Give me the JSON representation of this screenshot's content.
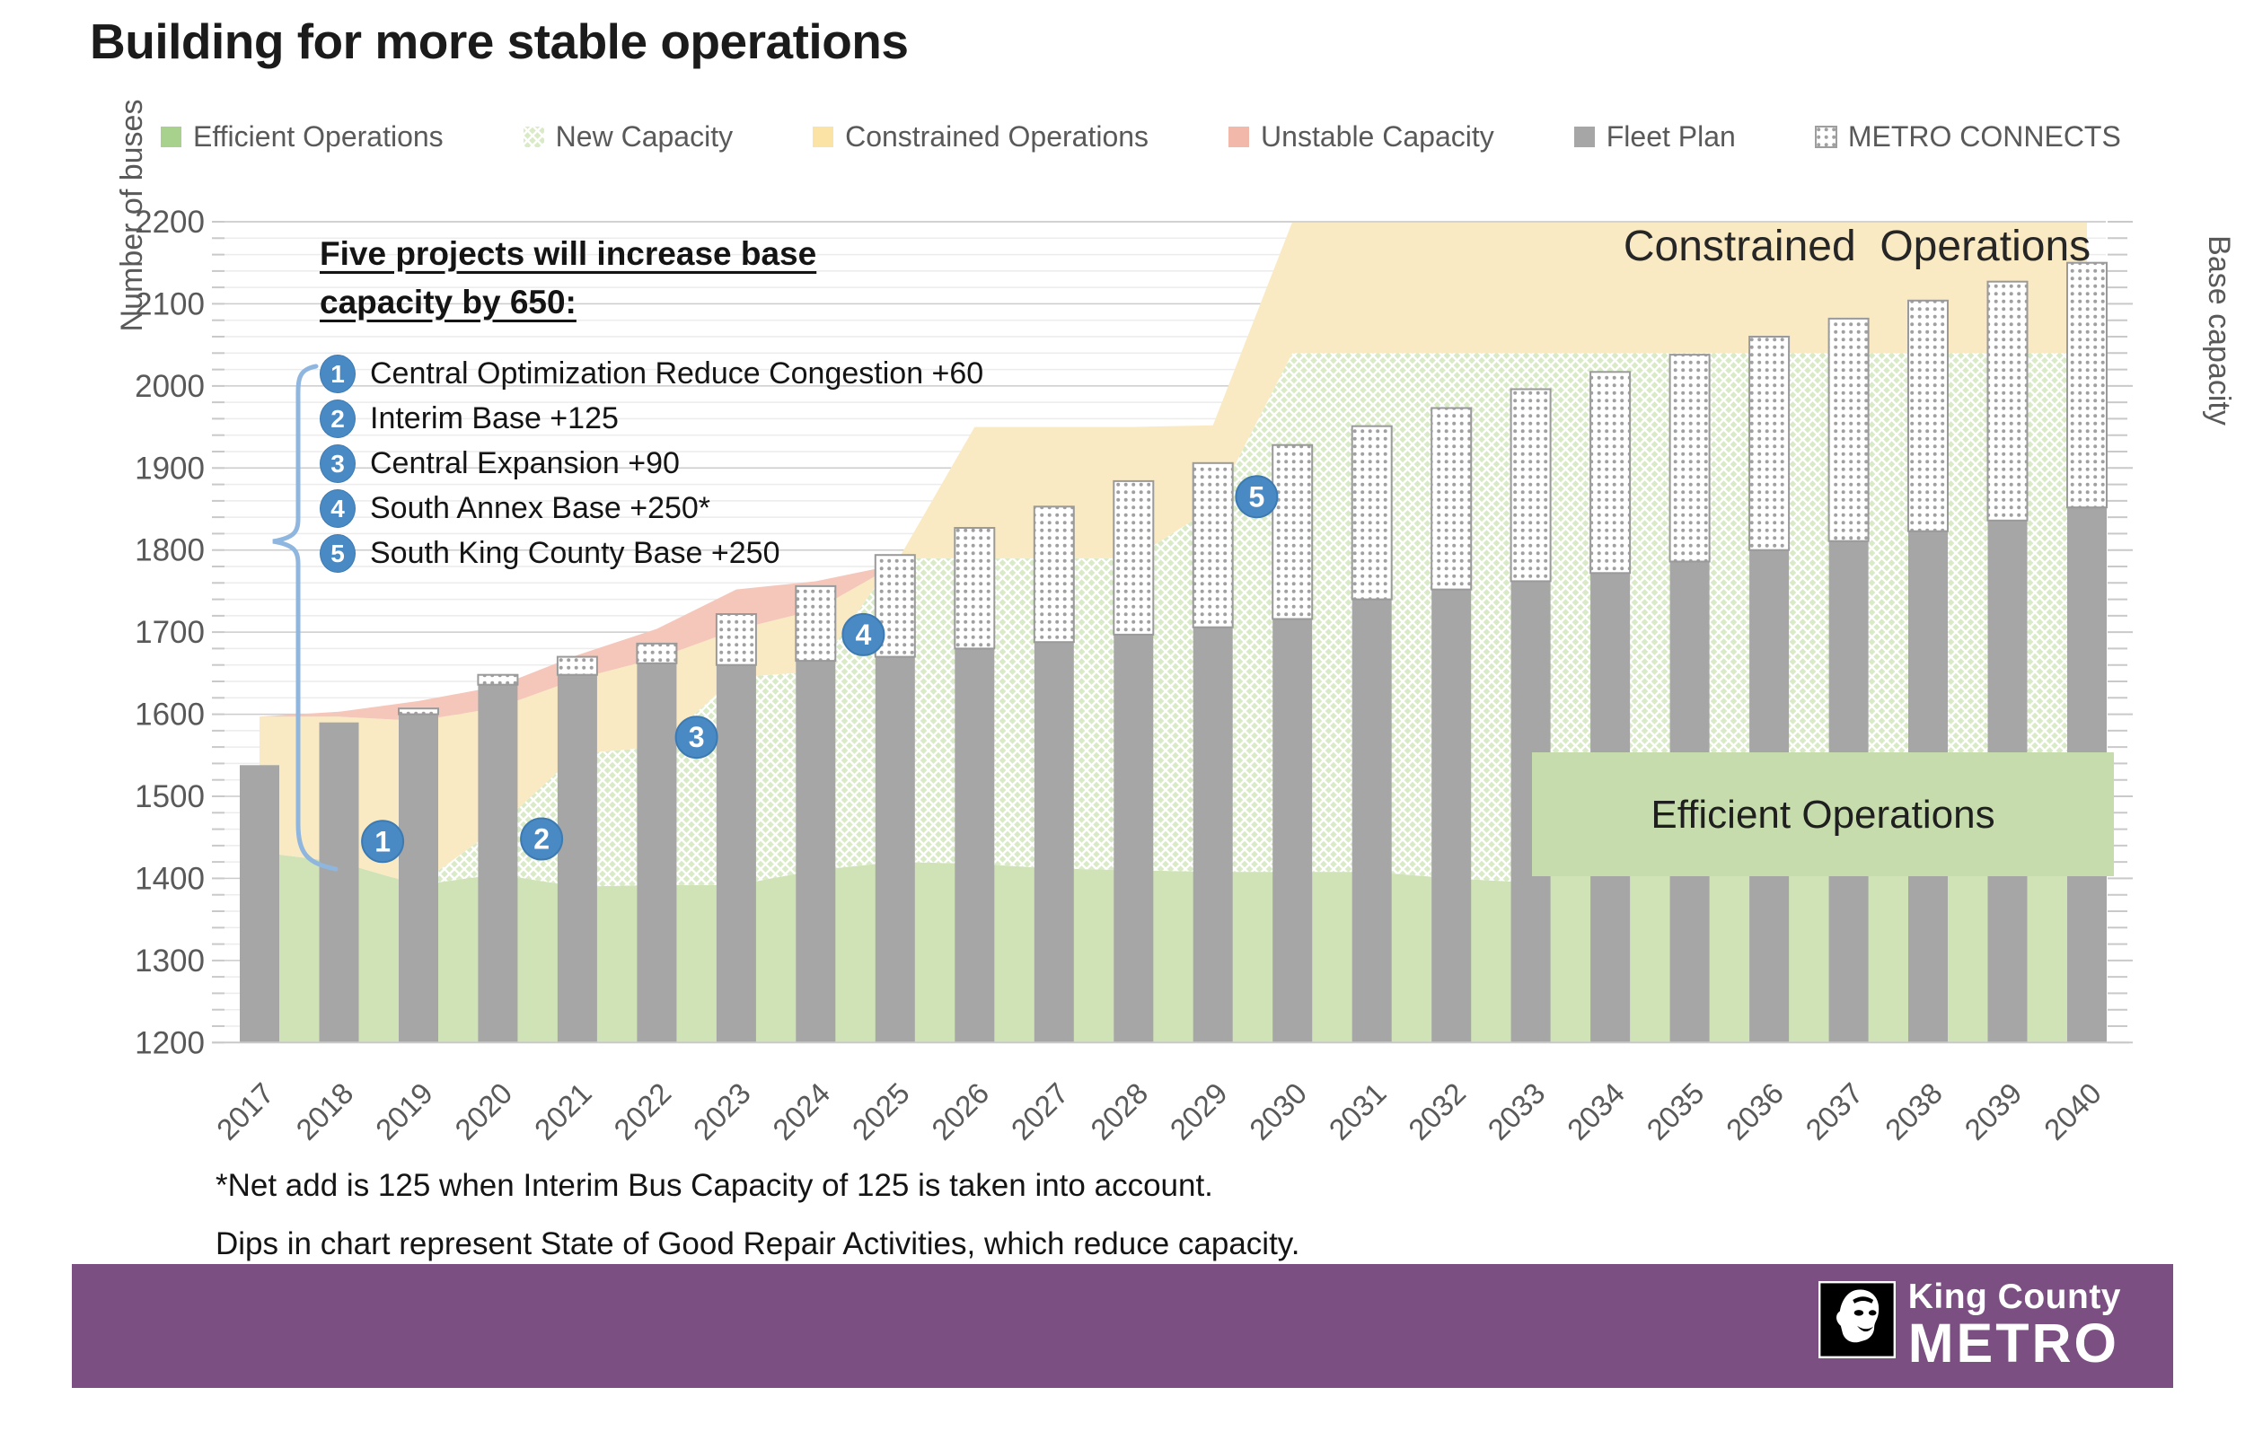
{
  "title": "Building for more stable operations",
  "legend": [
    {
      "label": "Efficient Operations",
      "swatch": "solid",
      "color": "#a9d18e"
    },
    {
      "label": "New Capacity",
      "swatch": "crosshatch",
      "color": "#c7dfae"
    },
    {
      "label": "Constrained Operations",
      "swatch": "solid",
      "color": "#fbe3a6"
    },
    {
      "label": "Unstable Capacity",
      "swatch": "solid",
      "color": "#f2b9aa"
    },
    {
      "label": "Fleet Plan",
      "swatch": "solid",
      "color": "#a6a6a6"
    },
    {
      "label": "METRO CONNECTS",
      "swatch": "dots",
      "color": "#ffffff"
    }
  ],
  "chart_data": {
    "type": "combo-stacked-area-bar",
    "title": "Building for more stable operations",
    "ylabel_left": "Number of buses",
    "ylabel_right": "Base capacity",
    "ylim": [
      1200,
      2200
    ],
    "ytick_step": 100,
    "yminor_step": 20,
    "ytick_labels": [
      1200,
      1300,
      1400,
      1500,
      1600,
      1700,
      1800,
      1900,
      2000,
      2100,
      2200
    ],
    "grid": true,
    "legend_position": "top",
    "years": [
      2017,
      2018,
      2019,
      2020,
      2021,
      2022,
      2023,
      2024,
      2025,
      2026,
      2027,
      2028,
      2029,
      2030,
      2031,
      2032,
      2033,
      2034,
      2035,
      2036,
      2037,
      2038,
      2039,
      2040
    ],
    "areas": {
      "efficient_top": [
        1432,
        1420,
        1392,
        1405,
        1390,
        1392,
        1392,
        1410,
        1420,
        1418,
        1412,
        1410,
        1408,
        1408,
        1408,
        1400,
        1395,
        1425,
        1412,
        1408,
        1408,
        1408,
        1408,
        1408
      ],
      "new_capacity_top": [
        1432,
        1420,
        1392,
        1462,
        1552,
        1560,
        1645,
        1652,
        1790,
        1790,
        1790,
        1790,
        1852,
        2040,
        2040,
        2040,
        2040,
        2040,
        2040,
        2040,
        2040,
        2040,
        2040,
        2040
      ],
      "constrained_top": [
        1597,
        1597,
        1592,
        1608,
        1643,
        1668,
        1703,
        1727,
        1782,
        1950,
        1950,
        1950,
        1952,
        2200,
        2200,
        2200,
        2200,
        2200,
        2200,
        2200,
        2200,
        2200,
        2200,
        2200
      ],
      "unstable_top": [
        1597,
        1603,
        1616,
        1634,
        1672,
        1704,
        1752,
        1762,
        1782,
        1950,
        1950,
        1950,
        1952,
        2200,
        2200,
        2200,
        2200,
        2200,
        2200,
        2200,
        2200,
        2200,
        2200,
        2200
      ]
    },
    "bars": {
      "fleet_plan": [
        1538,
        1590,
        1600,
        1636,
        1648,
        1662,
        1660,
        1665,
        1670,
        1680,
        1688,
        1697,
        1706,
        1716,
        1740,
        1752,
        1762,
        1772,
        1786,
        1800,
        1811,
        1823,
        1836,
        1852
      ],
      "metro_connects_total": [
        1538,
        1590,
        1607,
        1648,
        1670,
        1686,
        1722,
        1756,
        1794,
        1827,
        1853,
        1884,
        1906,
        1928,
        1951,
        1973,
        1996,
        2017,
        2038,
        2060,
        2082,
        2104,
        2127,
        2150
      ]
    },
    "annotations": {
      "heading_line1": "Five projects will increase base",
      "heading_line2": "capacity by 650:",
      "projects": [
        {
          "num": "1",
          "label": "Central Optimization Reduce Congestion +60"
        },
        {
          "num": "2",
          "label": "Interim Base +125"
        },
        {
          "num": "3",
          "label": "Central Expansion +90"
        },
        {
          "num": "4",
          "label": "South Annex Base +250*"
        },
        {
          "num": "5",
          "label": "South King County Base +250"
        }
      ],
      "markers": [
        {
          "num": "1",
          "year": 2018.55,
          "buses": 1445
        },
        {
          "num": "2",
          "year": 2020.55,
          "buses": 1448
        },
        {
          "num": "3",
          "year": 2022.5,
          "buses": 1572
        },
        {
          "num": "4",
          "year": 2024.6,
          "buses": 1697
        },
        {
          "num": "5",
          "year": 2029.55,
          "buses": 1865
        }
      ],
      "region_labels": {
        "constrained": "Constrained  Operations",
        "efficient": "Efficient Operations"
      }
    }
  },
  "footnotes": {
    "line1": "*Net add is 125 when Interim Bus Capacity of 125 is taken into account.",
    "line2": "Dips in chart represent State of Good Repair Activities, which reduce capacity."
  },
  "footer": {
    "agency": "King County",
    "brand": "METRO"
  },
  "colors": {
    "bar_gray": "#a6a6a6",
    "cap_dot": "#a0a0a0",
    "cap_stroke": "#9a9a9a",
    "area_green": "#cfe3b6",
    "crosshatch_bg": "#d9eac6",
    "area_yellow": "#faeac4",
    "area_pink": "#f5c6ba",
    "efficient_box_green": "#c6dcac",
    "balloon_blue": "#4a8ac4",
    "balloon_edge": "#3d7ab2",
    "brace_blue": "#8fb6de",
    "footer_purple": "#7b4f82",
    "grid_major": "#cccccc",
    "grid_minor": "#ececec",
    "tick_color": "#c9c9c9",
    "axis_text": "#595959"
  }
}
